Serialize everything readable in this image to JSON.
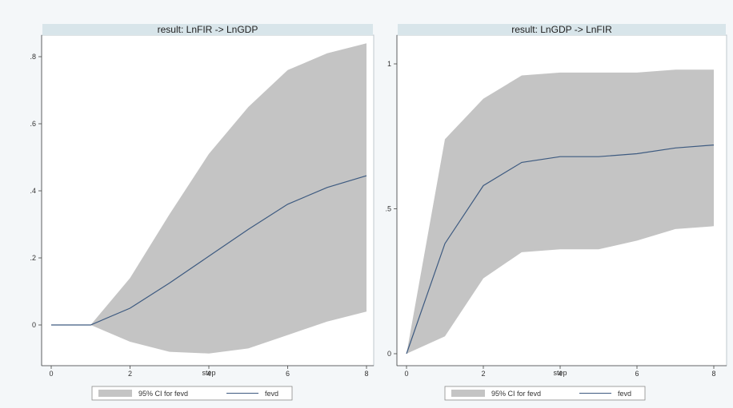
{
  "chart_data": [
    {
      "type": "area",
      "title": "result: LnFIR -> LnGDP",
      "xlabel": "step",
      "ylabel": "",
      "xlim": [
        0,
        8
      ],
      "ylim": [
        -0.1,
        0.86
      ],
      "xticks": [
        0,
        2,
        4,
        6,
        8
      ],
      "xtick_labels": [
        "0",
        "2",
        "4",
        "6",
        "8"
      ],
      "yticks": [
        0,
        0.2,
        0.4,
        0.6,
        0.8
      ],
      "ytick_labels": [
        "0",
        ".2",
        ".4",
        ".6",
        ".8"
      ],
      "grid": false,
      "legend_position": "bottom",
      "x": [
        0,
        1,
        2,
        3,
        4,
        5,
        6,
        7,
        8
      ],
      "series": [
        {
          "name": "95% CI for fevd",
          "kind": "band",
          "color": "#c4c4c4",
          "lower": [
            0,
            0,
            -0.05,
            -0.08,
            -0.085,
            -0.07,
            -0.03,
            0.01,
            0.04
          ],
          "upper": [
            0,
            0,
            0.14,
            0.33,
            0.51,
            0.65,
            0.76,
            0.81,
            0.84
          ]
        },
        {
          "name": "fevd",
          "kind": "line",
          "color": "#3d5a80",
          "values": [
            0,
            0,
            0.05,
            0.125,
            0.205,
            0.285,
            0.36,
            0.41,
            0.445
          ]
        }
      ]
    },
    {
      "type": "area",
      "title": "result: LnGDP -> LnFIR",
      "xlabel": "step",
      "ylabel": "",
      "xlim": [
        0,
        8
      ],
      "ylim": [
        0,
        1
      ],
      "xticks": [
        0,
        2,
        4,
        6,
        8
      ],
      "xtick_labels": [
        "0",
        "2",
        "4",
        "6",
        "8"
      ],
      "yticks": [
        0,
        0.5,
        1
      ],
      "ytick_labels": [
        "0",
        ".5",
        "1"
      ],
      "grid": false,
      "legend_position": "bottom",
      "x": [
        0,
        1,
        2,
        3,
        4,
        5,
        6,
        7,
        8
      ],
      "series": [
        {
          "name": "95% CI for fevd",
          "kind": "band",
          "color": "#c4c4c4",
          "lower": [
            0,
            0.06,
            0.26,
            0.35,
            0.36,
            0.36,
            0.39,
            0.43,
            0.44
          ],
          "upper": [
            0,
            0.74,
            0.88,
            0.96,
            0.97,
            0.97,
            0.97,
            0.98,
            0.98
          ]
        },
        {
          "name": "fevd",
          "kind": "line",
          "color": "#3d5a80",
          "values": [
            0,
            0.38,
            0.58,
            0.66,
            0.68,
            0.68,
            0.69,
            0.71,
            0.72
          ]
        }
      ]
    }
  ]
}
